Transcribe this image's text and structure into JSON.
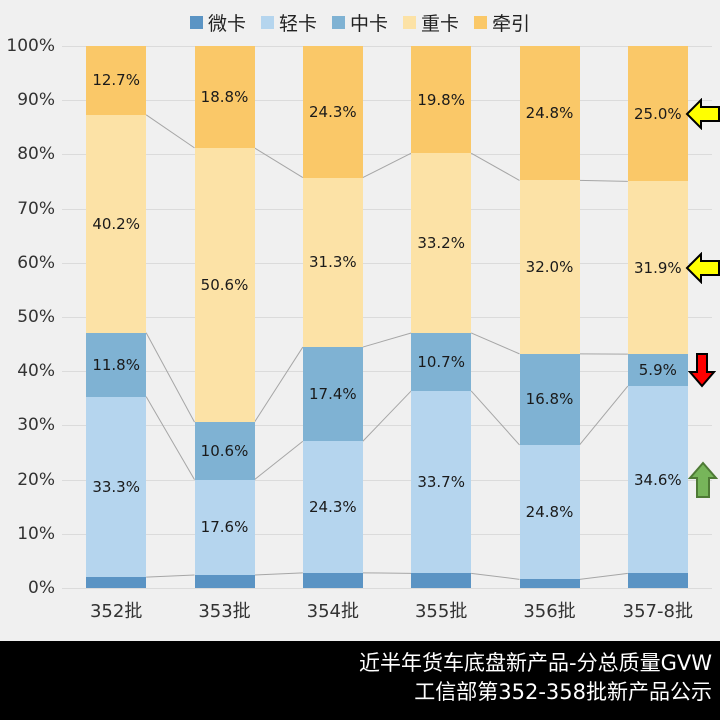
{
  "page": {
    "background": "#F0F0F0"
  },
  "chart_data": {
    "type": "bar",
    "subtype": "stacked-100-percent",
    "categories": [
      "352批",
      "353批",
      "354批",
      "355批",
      "356批",
      "357-8批"
    ],
    "series": [
      {
        "name": "微卡",
        "color": "#5B94C4",
        "values": [
          2.0,
          2.4,
          2.8,
          2.7,
          1.6,
          2.7
        ]
      },
      {
        "name": "轻卡",
        "color": "#B5D5EE",
        "values": [
          33.3,
          17.6,
          24.3,
          33.7,
          24.8,
          34.6
        ]
      },
      {
        "name": "中卡",
        "color": "#7FB2D3",
        "values": [
          11.8,
          10.6,
          17.4,
          10.7,
          16.8,
          5.9
        ]
      },
      {
        "name": "重卡",
        "color": "#FCE2A6",
        "values": [
          40.2,
          50.6,
          31.3,
          33.2,
          32.0,
          31.9
        ]
      },
      {
        "name": "牵引",
        "color": "#FAC868",
        "values": [
          12.7,
          18.8,
          24.3,
          19.8,
          24.8,
          25.0
        ]
      }
    ],
    "data_label_format": "one-decimal-percent",
    "y_ticks": [
      "100%",
      "90%",
      "80%",
      "70%",
      "60%",
      "50%",
      "40%",
      "30%",
      "20%",
      "10%",
      "0%"
    ],
    "ylim": [
      0,
      100
    ],
    "grid": true,
    "gridline_color": "#DBDBDB",
    "connector_line_color": "#A6A6A6",
    "legend_position": "top",
    "annotations": [
      {
        "name": "yellow-left-arrow",
        "category_index": 5,
        "series": "牵引",
        "direction": "left",
        "fill": "#FFFF00",
        "stroke": "#000000"
      },
      {
        "name": "yellow-left-arrow",
        "category_index": 5,
        "series": "重卡",
        "direction": "left",
        "fill": "#FFFF00",
        "stroke": "#000000"
      },
      {
        "name": "red-down-arrow",
        "category_index": 5,
        "series": "中卡",
        "direction": "down",
        "fill": "#FF0000",
        "stroke": "#000000"
      },
      {
        "name": "green-up-arrow",
        "category_index": 5,
        "series": "轻卡",
        "direction": "up",
        "fill": "#77B55A",
        "stroke": "#4E7A35"
      }
    ]
  },
  "footer": {
    "line1": "近半年货车底盘新产品-分总质量GVW",
    "line2": "工信部第352-358批新产品公示",
    "background": "#000000",
    "text_color": "#FFFFFF"
  }
}
